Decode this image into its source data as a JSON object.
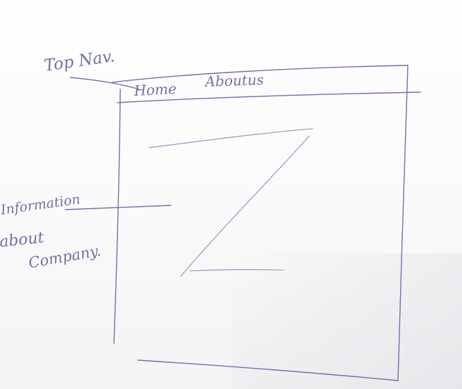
{
  "annotations": {
    "top_nav": "Top Nav.",
    "information_line1": "Information",
    "information_line2": "about",
    "information_line3": "Company."
  },
  "wireframe": {
    "nav_items": [
      "Home",
      "Aboutus"
    ]
  },
  "colors": {
    "ink": "#6f72a6",
    "paper": "#fbfbfb"
  }
}
